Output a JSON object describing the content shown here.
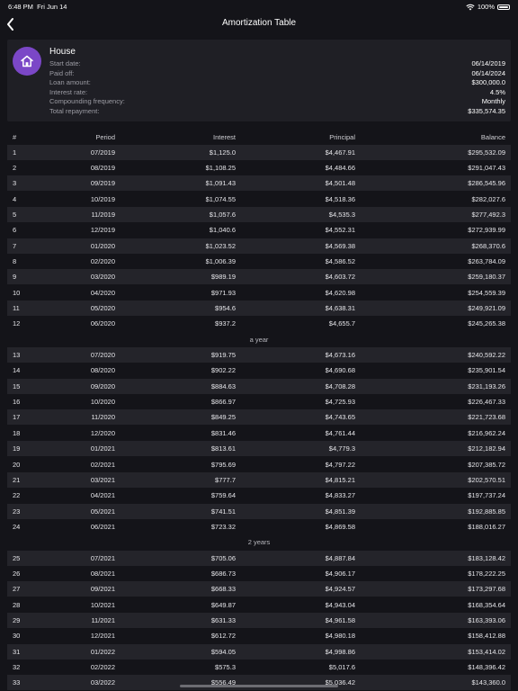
{
  "status": {
    "time": "6:48 PM",
    "date": "Fri Jun 14",
    "battery": "100%"
  },
  "nav": {
    "title": "Amortization Table"
  },
  "summary": {
    "name": "House",
    "labels": [
      "Start date:",
      "Paid off:",
      "Loan amount:",
      "Interest rate:",
      "Compounding frequency:",
      "Total repayment:"
    ],
    "values": [
      "06/14/2019",
      "06/14/2024",
      "$300,000.0",
      "4.5%",
      "Monthly",
      "$335,574.35"
    ]
  },
  "table": {
    "headers": [
      "#",
      "Period",
      "Interest",
      "Principal",
      "Balance"
    ],
    "rows": [
      [
        "1",
        "07/2019",
        "$1,125.0",
        "$4,467.91",
        "$295,532.09"
      ],
      [
        "2",
        "08/2019",
        "$1,108.25",
        "$4,484.66",
        "$291,047.43"
      ],
      [
        "3",
        "09/2019",
        "$1,091.43",
        "$4,501.48",
        "$286,545.96"
      ],
      [
        "4",
        "10/2019",
        "$1,074.55",
        "$4,518.36",
        "$282,027.6"
      ],
      [
        "5",
        "11/2019",
        "$1,057.6",
        "$4,535.3",
        "$277,492.3"
      ],
      [
        "6",
        "12/2019",
        "$1,040.6",
        "$4,552.31",
        "$272,939.99"
      ],
      [
        "7",
        "01/2020",
        "$1,023.52",
        "$4,569.38",
        "$268,370.6"
      ],
      [
        "8",
        "02/2020",
        "$1,006.39",
        "$4,586.52",
        "$263,784.09"
      ],
      [
        "9",
        "03/2020",
        "$989.19",
        "$4,603.72",
        "$259,180.37"
      ],
      [
        "10",
        "04/2020",
        "$971.93",
        "$4,620.98",
        "$254,559.39"
      ],
      [
        "11",
        "05/2020",
        "$954.6",
        "$4,638.31",
        "$249,921.09"
      ],
      [
        "12",
        "06/2020",
        "$937.2",
        "$4,655.7",
        "$245,265.38"
      ],
      [
        "13",
        "07/2020",
        "$919.75",
        "$4,673.16",
        "$240,592.22"
      ],
      [
        "14",
        "08/2020",
        "$902.22",
        "$4,690.68",
        "$235,901.54"
      ],
      [
        "15",
        "09/2020",
        "$884.63",
        "$4,708.28",
        "$231,193.26"
      ],
      [
        "16",
        "10/2020",
        "$866.97",
        "$4,725.93",
        "$226,467.33"
      ],
      [
        "17",
        "11/2020",
        "$849.25",
        "$4,743.65",
        "$221,723.68"
      ],
      [
        "18",
        "12/2020",
        "$831.46",
        "$4,761.44",
        "$216,962.24"
      ],
      [
        "19",
        "01/2021",
        "$813.61",
        "$4,779.3",
        "$212,182.94"
      ],
      [
        "20",
        "02/2021",
        "$795.69",
        "$4,797.22",
        "$207,385.72"
      ],
      [
        "21",
        "03/2021",
        "$777.7",
        "$4,815.21",
        "$202,570.51"
      ],
      [
        "22",
        "04/2021",
        "$759.64",
        "$4,833.27",
        "$197,737.24"
      ],
      [
        "23",
        "05/2021",
        "$741.51",
        "$4,851.39",
        "$192,885.85"
      ],
      [
        "24",
        "06/2021",
        "$723.32",
        "$4,869.58",
        "$188,016.27"
      ],
      [
        "25",
        "07/2021",
        "$705.06",
        "$4,887.84",
        "$183,128.42"
      ],
      [
        "26",
        "08/2021",
        "$686.73",
        "$4,906.17",
        "$178,222.25"
      ],
      [
        "27",
        "09/2021",
        "$668.33",
        "$4,924.57",
        "$173,297.68"
      ],
      [
        "28",
        "10/2021",
        "$649.87",
        "$4,943.04",
        "$168,354.64"
      ],
      [
        "29",
        "11/2021",
        "$631.33",
        "$4,961.58",
        "$163,393.06"
      ],
      [
        "30",
        "12/2021",
        "$612.72",
        "$4,980.18",
        "$158,412.88"
      ],
      [
        "31",
        "01/2022",
        "$594.05",
        "$4,998.86",
        "$153,414.02"
      ],
      [
        "32",
        "02/2022",
        "$575.3",
        "$5,017.6",
        "$148,396.42"
      ],
      [
        "33",
        "03/2022",
        "$556.49",
        "$5,036.42",
        "$143,360.0"
      ]
    ],
    "separators": [
      "a year",
      "2 years"
    ]
  }
}
